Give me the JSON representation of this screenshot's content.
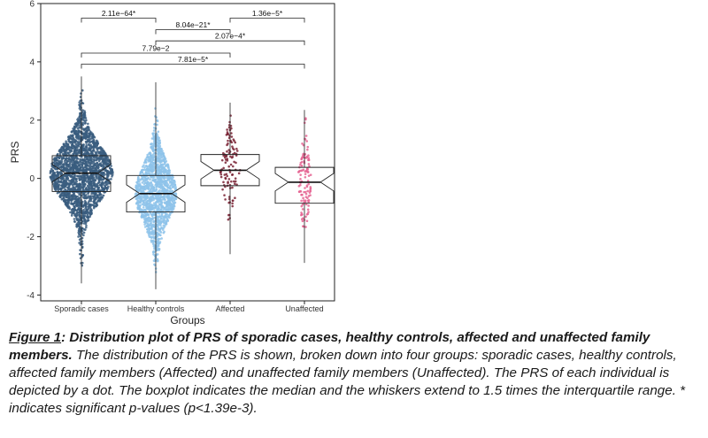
{
  "chart_data": {
    "type": "box",
    "xlabel": "Groups",
    "ylabel": "PRS",
    "ylim": [
      -4.2,
      6
    ],
    "yticks": [
      -4,
      -2,
      0,
      2,
      4,
      6
    ],
    "grid": false,
    "legend": "none",
    "categories": [
      "Sporadic cases",
      "Healthy controls",
      "Affected",
      "Unaffected"
    ],
    "colors": [
      "#3a5d7f",
      "#8ec3ea",
      "#7a2335",
      "#e56593"
    ],
    "boxes": [
      {
        "group": "Sporadic cases",
        "min": -3.6,
        "q1": -0.45,
        "median": 0.18,
        "q3": 0.78,
        "max": 3.5
      },
      {
        "group": "Healthy controls",
        "min": -3.8,
        "q1": -1.15,
        "median": -0.52,
        "q3": 0.1,
        "max": 3.3
      },
      {
        "group": "Affected",
        "min": -2.6,
        "q1": -0.25,
        "median": 0.28,
        "q3": 0.82,
        "max": 2.6
      },
      {
        "group": "Unaffected",
        "min": -2.9,
        "q1": -0.85,
        "median": -0.13,
        "q3": 0.38,
        "max": 2.35
      }
    ],
    "comparisons": [
      {
        "pair": [
          "Sporadic cases",
          "Healthy controls"
        ],
        "label": "2.11e−64*",
        "y": 5.5
      },
      {
        "pair": [
          "Affected",
          "Unaffected"
        ],
        "label": "1.36e−5*",
        "y": 5.5
      },
      {
        "pair": [
          "Healthy controls",
          "Affected"
        ],
        "label": "8.04e−21*",
        "y": 5.1
      },
      {
        "pair": [
          "Healthy controls",
          "Unaffected"
        ],
        "label": "2.07e−4*",
        "y": 4.72
      },
      {
        "pair": [
          "Sporadic cases",
          "Affected"
        ],
        "label": "7.79e−2",
        "y": 4.3
      },
      {
        "pair": [
          "Sporadic cases",
          "Unaffected"
        ],
        "label": "7.81e−5*",
        "y": 3.92
      }
    ]
  },
  "caption": {
    "figure_label": "Figure 1",
    "title": ": Distribution plot of PRS of sporadic cases, healthy controls, affected and unaffected family members.",
    "body": " The distribution of the PRS is shown, broken down into four groups: sporadic cases, healthy controls, affected family members (Affected) and unaffected family members (Unaffected). The PRS of each individual is depicted by a dot. The boxplot indicates the median and the whiskers extend to 1.5 times the interquartile range. * indicates significant p-values (p<1.39e-3)."
  }
}
